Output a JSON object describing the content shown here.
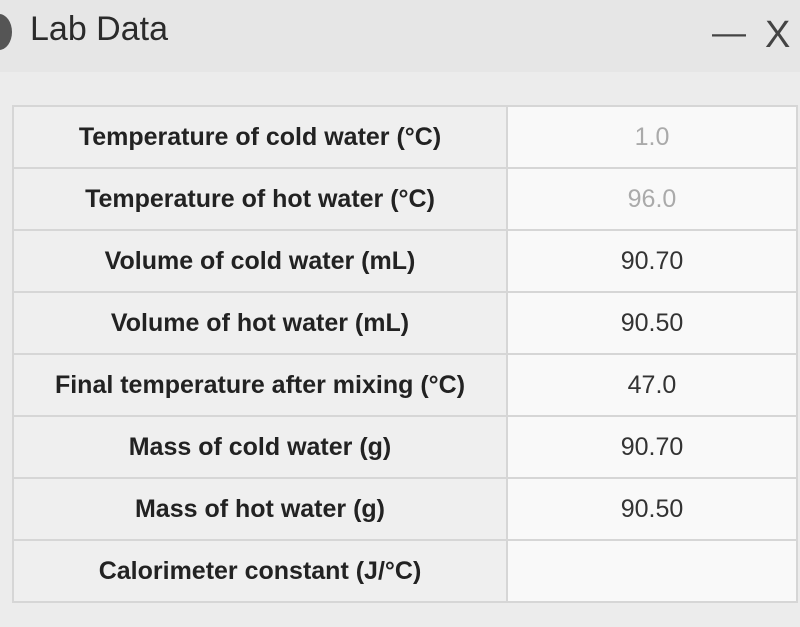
{
  "header": {
    "title": "Lab Data",
    "minimize": "—",
    "close": "X"
  },
  "table": {
    "rows": [
      [
        "Temperature of cold water (°C)",
        "1.0"
      ],
      [
        "Temperature of hot water (°C)",
        "96.0"
      ],
      [
        "Volume of cold water (mL)",
        "90.70"
      ],
      [
        "Volume of hot water (mL)",
        "90.50"
      ],
      [
        "Final temperature after mixing (°C)",
        "47.0"
      ],
      [
        "Mass of cold water (g)",
        "90.70"
      ],
      [
        "Mass of hot water (g)",
        "90.50"
      ],
      [
        "Calorimeter constant (J/°C)",
        null
      ]
    ]
  }
}
